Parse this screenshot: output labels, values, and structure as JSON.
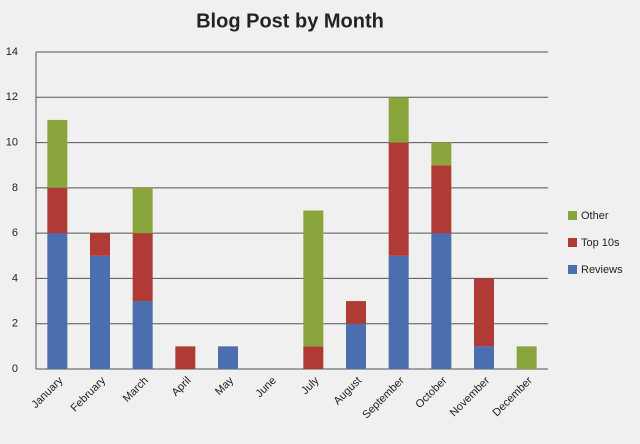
{
  "chart_data": {
    "type": "stacked-bar",
    "title": "Blog Post by Month",
    "categories": [
      "January",
      "February",
      "March",
      "April",
      "May",
      "June",
      "July",
      "August",
      "September",
      "October",
      "November",
      "December"
    ],
    "series": [
      {
        "name": "Reviews",
        "color": "#4a6eae",
        "values": [
          6,
          5,
          3,
          0,
          1,
          0,
          0,
          2,
          5,
          6,
          1,
          0
        ]
      },
      {
        "name": "Top 10s",
        "color": "#b03a36",
        "values": [
          2,
          1,
          3,
          1,
          0,
          0,
          1,
          1,
          5,
          3,
          3,
          0
        ]
      },
      {
        "name": "Other",
        "color": "#8aa53c",
        "values": [
          3,
          0,
          2,
          0,
          0,
          0,
          6,
          0,
          2,
          1,
          0,
          1
        ]
      }
    ],
    "ylim": [
      0,
      14
    ],
    "yticks": [
      0,
      2,
      4,
      6,
      8,
      10,
      12,
      14
    ],
    "grid": true,
    "legend": "right"
  }
}
